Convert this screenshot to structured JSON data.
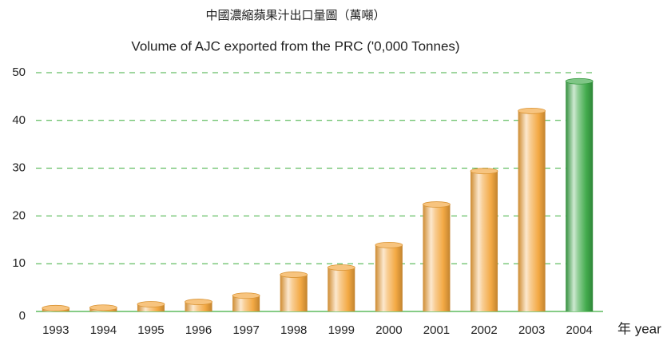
{
  "chart_data": {
    "type": "bar",
    "title": "中國濃縮蘋果汁出口量圖（萬噸）",
    "subtitle": "Volume of AJC exported from the PRC ('0,000 Tonnes)",
    "xlabel": "年 year",
    "categories": [
      "1993",
      "1994",
      "1995",
      "1996",
      "1997",
      "1998",
      "1999",
      "2000",
      "2001",
      "2002",
      "2003",
      "2004"
    ],
    "values": [
      0.7,
      0.8,
      1.5,
      2,
      3.3,
      7.7,
      9.2,
      13.9,
      22.4,
      29.4,
      42,
      48.2
    ],
    "colors": [
      "#f2a43a",
      "#f2a43a",
      "#f2a43a",
      "#f2a43a",
      "#f2a43a",
      "#f2a43a",
      "#f2a43a",
      "#f2a43a",
      "#f2a43a",
      "#f2a43a",
      "#f2a43a",
      "#3aa845"
    ],
    "ylim": [
      0,
      50
    ],
    "yticks": [
      0,
      10,
      20,
      30,
      40,
      50
    ],
    "grid": true,
    "grid_color": "#3fae3f"
  }
}
